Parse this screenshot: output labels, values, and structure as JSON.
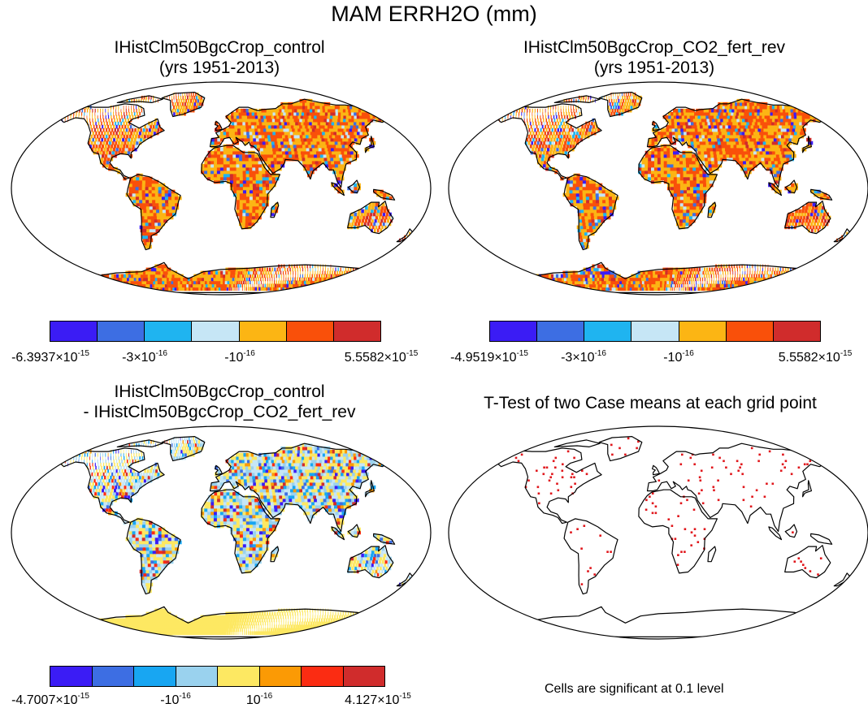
{
  "figure_title": "MAM ERRH2O (mm)",
  "panels": [
    {
      "id": "control",
      "title_line1": "IHistClm50BgcCrop_control",
      "title_line2": "(yrs 1951-2013)",
      "colorbar": {
        "colors": [
          "#3b1cf5",
          "#3d6ee3",
          "#1fb4f0",
          "#c6e6f6",
          "#fcb514",
          "#f9500a",
          "#d02c2c"
        ],
        "labels": [
          {
            "mant": "-6.3937",
            "exp": "-15"
          },
          {
            "mant": "-3",
            "exp": "-16"
          },
          {
            "mant": "-10",
            "exp": "-16",
            "plain_base": true
          },
          {
            "mant": "5.5582",
            "exp": "-15"
          }
        ]
      },
      "land_style": "orange"
    },
    {
      "id": "co2_fert_rev",
      "title_line1": "IHistClm50BgcCrop_CO2_fert_rev",
      "title_line2": "(yrs 1951-2013)",
      "colorbar": {
        "colors": [
          "#3b1cf5",
          "#3d6ee3",
          "#1fb4f0",
          "#c6e6f6",
          "#fcb514",
          "#f9500a",
          "#d02c2c"
        ],
        "labels": [
          {
            "mant": "-4.9519",
            "exp": "-15"
          },
          {
            "mant": "-3",
            "exp": "-16"
          },
          {
            "mant": "-10",
            "exp": "-16",
            "plain_base": true
          },
          {
            "mant": "5.5582",
            "exp": "-15"
          }
        ]
      },
      "land_style": "orange"
    },
    {
      "id": "difference",
      "title_line1": "IHistClm50BgcCrop_control",
      "title_line2": "- IHistClm50BgcCrop_CO2_fert_rev",
      "colorbar": {
        "colors": [
          "#3b1cf5",
          "#3d6ee3",
          "#18a6f2",
          "#9ad2ee",
          "#fde862",
          "#fb9a05",
          "#fb2c12",
          "#d02c2c"
        ],
        "labels": [
          {
            "mant": "-4.7007",
            "exp": "-15"
          },
          {
            "mant": "-10",
            "exp": "-16",
            "plain_base": true
          },
          {
            "mant": "10",
            "exp": "-16",
            "plain_base": true
          },
          {
            "mant": "4.127",
            "exp": "-15"
          }
        ]
      },
      "land_style": "diff"
    },
    {
      "id": "ttest",
      "title_line1": "T-Test of two Case means at each grid point",
      "title_line2": "",
      "note": "Cells are significant at 0.1 level",
      "land_style": "ttest"
    }
  ],
  "colors": {
    "map_outline": "#000000",
    "ttest_marker": "#e0161b"
  }
}
